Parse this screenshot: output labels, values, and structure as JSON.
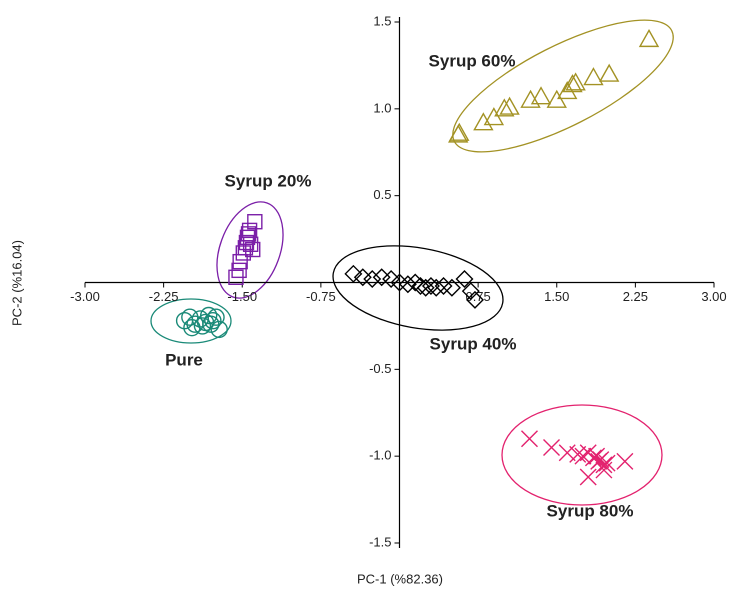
{
  "chart_data": {
    "type": "scatter",
    "xlabel": "PC-1 (%82.36)",
    "ylabel": "PC-2 (%16.04)",
    "xlim": [
      -3,
      3
    ],
    "xticks": [
      {
        "value": -3,
        "label": "-3.00"
      },
      {
        "value": -2.25,
        "label": "-2.25"
      },
      {
        "value": -1.5,
        "label": "-1.50"
      },
      {
        "value": -0.75,
        "label": "-0.75"
      },
      {
        "value": 0.75,
        "label": "0.75"
      },
      {
        "value": 1.5,
        "label": "1.50"
      },
      {
        "value": 2.25,
        "label": "2.25"
      },
      {
        "value": 3,
        "label": "3.00"
      }
    ],
    "ylim": [
      -1.5,
      1.5
    ],
    "yticks": [
      1.5,
      {
        "value": 1,
        "label": "1.0"
      },
      0.5,
      -0.5,
      {
        "value": -1,
        "label": "-1.0"
      },
      -1.5
    ],
    "series": [
      {
        "name": "Pure",
        "color": "#1a8a78",
        "marker": "circle",
        "x": [
          -2.05,
          -2.0,
          -1.95,
          -1.9,
          -1.85,
          -1.82,
          -1.78,
          -1.75,
          -1.98,
          -1.88,
          -1.8,
          -1.72
        ],
        "values": [
          -0.22,
          -0.2,
          -0.24,
          -0.21,
          -0.23,
          -0.19,
          -0.22,
          -0.2,
          -0.26,
          -0.25,
          -0.24,
          -0.27
        ]
      },
      {
        "name": "Syrup 20%",
        "color": "#7b1fa8",
        "marker": "square",
        "x": [
          -1.56,
          -1.53,
          -1.52,
          -1.49,
          -1.47,
          -1.46,
          -1.45,
          -1.44,
          -1.43,
          -1.42,
          -1.4,
          -1.38
        ],
        "values": [
          0.03,
          0.07,
          0.12,
          0.17,
          0.2,
          0.23,
          0.26,
          0.28,
          0.3,
          0.22,
          0.19,
          0.35
        ]
      },
      {
        "name": "Syrup 40%",
        "color": "#000000",
        "marker": "diamond",
        "x": [
          -0.44,
          -0.35,
          -0.26,
          -0.17,
          -0.08,
          0.0,
          0.08,
          0.15,
          0.2,
          0.25,
          0.3,
          0.35,
          0.42,
          0.5,
          0.62,
          0.68,
          0.72
        ],
        "values": [
          0.05,
          0.03,
          0.02,
          0.03,
          0.02,
          0.0,
          -0.01,
          0.0,
          -0.02,
          -0.03,
          -0.02,
          -0.03,
          -0.02,
          -0.03,
          0.02,
          -0.05,
          -0.1
        ]
      },
      {
        "name": "Syrup 60%",
        "color": "#a39224",
        "marker": "triangle",
        "x": [
          0.56,
          0.57,
          0.8,
          0.9,
          1.0,
          1.05,
          1.25,
          1.35,
          1.5,
          1.6,
          1.65,
          1.68,
          1.85,
          2.0,
          2.38
        ],
        "values": [
          0.85,
          0.86,
          0.92,
          0.95,
          1.0,
          1.01,
          1.05,
          1.07,
          1.05,
          1.1,
          1.14,
          1.15,
          1.18,
          1.2,
          1.4
        ]
      },
      {
        "name": "Syrup 80%",
        "color": "#e3226e",
        "marker": "x",
        "x": [
          1.24,
          1.45,
          1.6,
          1.7,
          1.75,
          1.8,
          1.85,
          1.88,
          1.9,
          1.92,
          1.95,
          1.98,
          2.15,
          1.8,
          1.95
        ],
        "values": [
          -0.9,
          -0.95,
          -0.98,
          -0.99,
          -1.0,
          -0.98,
          -1.01,
          -1.0,
          -1.03,
          -1.02,
          -1.05,
          -1.04,
          -1.03,
          -1.12,
          -1.08
        ]
      }
    ]
  }
}
